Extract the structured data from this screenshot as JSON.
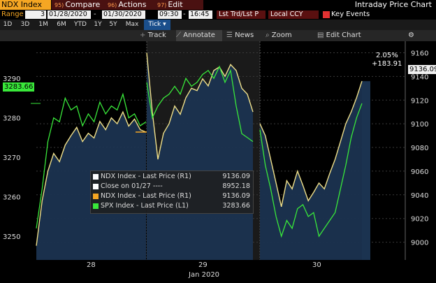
{
  "titlebar": {
    "ticker": "NDX Index",
    "compare_num": "95)",
    "compare_label": "Compare",
    "actions_num": "96)",
    "actions_label": "Actions",
    "edit_num": "97)",
    "edit_label": "Edit",
    "chart_title": "Intraday Price Chart"
  },
  "rangebar": {
    "range_label": "Range",
    "range_value": "3",
    "start_date": "01/28/2020",
    "dash": "-",
    "end_date": "01/30/2020",
    "start_time": "09:30",
    "end_time": "16:45",
    "price_type": "Lst Trd/Lst P",
    "currency": "Local CCY",
    "key_events": "Key Events"
  },
  "periods": [
    "1D",
    "3D",
    "1M",
    "6M",
    "YTD",
    "1Y",
    "5Y",
    "Max",
    "Tick"
  ],
  "active_period": "Tick",
  "toolbar": {
    "track": "Track",
    "annotate": "Annotate",
    "news": "News",
    "zoom": "Zoom",
    "edit_chart": "Edit Chart"
  },
  "colors": {
    "ndx_line": "#f0e08a",
    "spx_line": "#39e83a",
    "area_fill": "#1b3350",
    "orange": "#f5a623"
  },
  "tags": {
    "left_value": "3283.66",
    "right_value": "9136.09",
    "change_pct": "2.05%",
    "change_abs": "+183.91"
  },
  "legend": [
    {
      "name": "NDX Index - Last Price (R1)",
      "value": "9136.09",
      "color": "#ffffff"
    },
    {
      "name": "Close on 01/27 ----",
      "value": "8952.18",
      "color": "#ffffff"
    },
    {
      "name": "NDX Index - Last Price (R1)",
      "value": "9136.09",
      "color": "#f5a623"
    },
    {
      "name": "SPX Index - Last Price (L1)",
      "value": "3283.66",
      "color": "#39e83a"
    }
  ],
  "chart_data": {
    "type": "line",
    "xlabel": "Jan 2020",
    "x_tick_labels": [
      "28",
      "29",
      "30"
    ],
    "y_left": {
      "ticks": [
        3250,
        3260,
        3270,
        3280,
        3290
      ],
      "range": [
        3244,
        3298
      ]
    },
    "y_right": {
      "ticks": [
        9000,
        9020,
        9040,
        9060,
        9080,
        9100,
        9120,
        9140,
        9160
      ],
      "range": [
        8985,
        9165
      ]
    },
    "reference_close": 8952.18,
    "series": [
      {
        "name": "NDX Index - Last Price (R1)",
        "axis": "right",
        "days": [
          {
            "day": "28",
            "values": [
              8997,
              9035,
              9060,
              9075,
              9068,
              9082,
              9090,
              9097,
              9085,
              9092,
              9088,
              9102,
              9095,
              9105,
              9100,
              9110,
              9098,
              9104,
              9095,
              9093
            ]
          },
          {
            "day": "29",
            "values": [
              9160,
              9110,
              9070,
              9092,
              9100,
              9115,
              9108,
              9122,
              9130,
              9128,
              9138,
              9132,
              9145,
              9148,
              9140,
              9150,
              9145,
              9130,
              9125,
              9110
            ]
          },
          {
            "day": "30",
            "values": [
              9100,
              9090,
              9070,
              9050,
              9030,
              9052,
              9045,
              9060,
              9048,
              9035,
              9042,
              9050,
              9045,
              9058,
              9070,
              9085,
              9100,
              9110,
              9122,
              9136
            ]
          }
        ]
      },
      {
        "name": "SPX Index - Last Price (L1)",
        "axis": "left",
        "days": [
          {
            "day": "28",
            "values": [
              3252,
              3262,
              3274,
              3280,
              3279,
              3285,
              3282,
              3283,
              3278,
              3281,
              3279,
              3284,
              3281,
              3283,
              3282,
              3286,
              3280,
              3281,
              3278,
              3279
            ]
          },
          {
            "day": "29",
            "values": [
              3289,
              3280,
              3283,
              3285,
              3286,
              3288,
              3286,
              3290,
              3288,
              3289,
              3291,
              3292,
              3290,
              3293,
              3289,
              3292,
              3283,
              3276,
              3275,
              3274
            ]
          },
          {
            "day": "30",
            "values": [
              3277,
              3268,
              3262,
              3255,
              3250,
              3254,
              3252,
              3257,
              3258,
              3255,
              3256,
              3250,
              3252,
              3254,
              3256,
              3262,
              3268,
              3275,
              3280,
              3283.66
            ]
          }
        ]
      }
    ]
  }
}
